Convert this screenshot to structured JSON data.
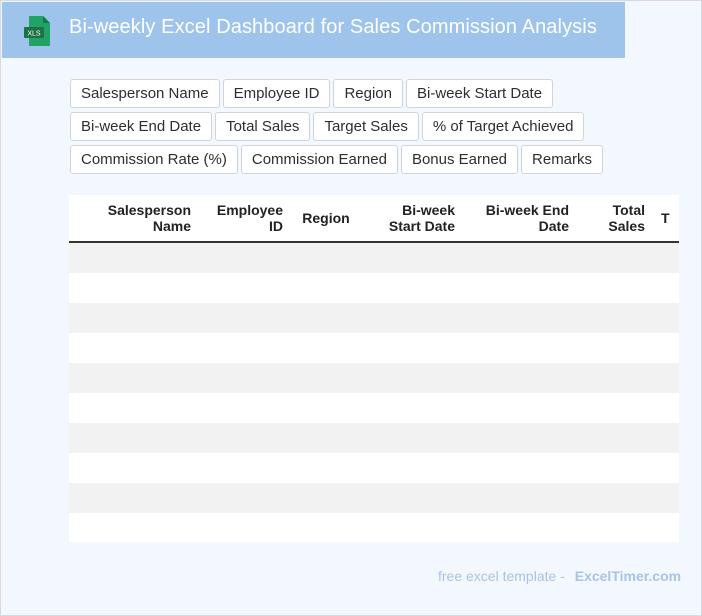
{
  "header": {
    "title": "Bi-weekly Excel Dashboard for Sales Commission Analysis",
    "icon": "xls-file-icon",
    "icon_label": "XLS",
    "icon_color": "#1e7145"
  },
  "fields": [
    "Salesperson Name",
    "Employee ID",
    "Region",
    "Bi-week Start Date",
    "Bi-week End Date",
    "Total Sales",
    "Target Sales",
    "% of Target Achieved",
    "Commission Rate (%)",
    "Commission Earned",
    "Bonus Earned",
    "Remarks"
  ],
  "table": {
    "columns": [
      "Salesperson Name",
      "Employee ID",
      "Region",
      "Bi-week Start Date",
      "Bi-week End Date",
      "Total Sales",
      "T"
    ],
    "rows": [
      [
        "",
        "",
        "",
        "",
        "",
        "",
        ""
      ],
      [
        "",
        "",
        "",
        "",
        "",
        "",
        ""
      ],
      [
        "",
        "",
        "",
        "",
        "",
        "",
        ""
      ],
      [
        "",
        "",
        "",
        "",
        "",
        "",
        ""
      ],
      [
        "",
        "",
        "",
        "",
        "",
        "",
        ""
      ],
      [
        "",
        "",
        "",
        "",
        "",
        "",
        ""
      ],
      [
        "",
        "",
        "",
        "",
        "",
        "",
        ""
      ],
      [
        "",
        "",
        "",
        "",
        "",
        "",
        ""
      ],
      [
        "",
        "",
        "",
        "",
        "",
        "",
        ""
      ],
      [
        "",
        "",
        "",
        "",
        "",
        "",
        ""
      ]
    ]
  },
  "footer": {
    "prefix": "free excel template -",
    "brand": "ExcelTimer.com"
  },
  "colors": {
    "header_bg": "#9ec4ec",
    "page_bg": "#f3f8fe",
    "stripe": "#f2f2f2",
    "footer_text": "#a7c3e6"
  }
}
